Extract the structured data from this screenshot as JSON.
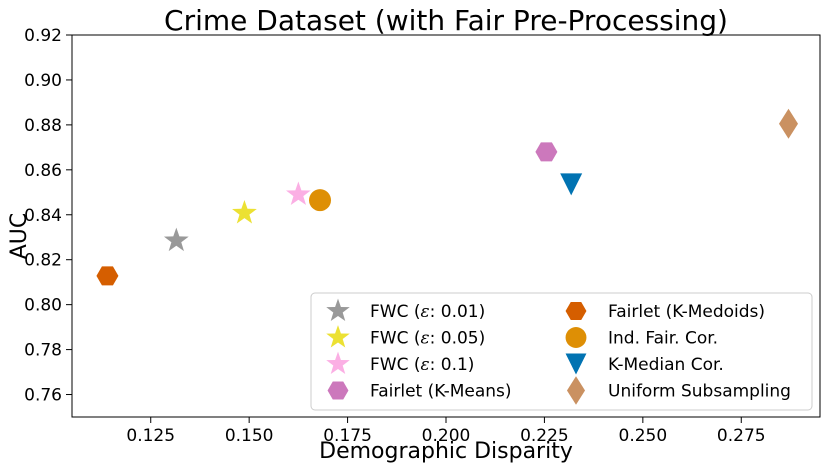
{
  "chart_data": {
    "type": "scatter",
    "title": "Crime Dataset (with Fair Pre-Processing)",
    "xlabel": "Demographic Disparity",
    "ylabel": "AUC",
    "xlim": [
      0.105,
      0.295
    ],
    "ylim": [
      0.75,
      0.92
    ],
    "xticks": [
      "0.125",
      "0.150",
      "0.175",
      "0.200",
      "0.225",
      "0.250",
      "0.275"
    ],
    "yticks": [
      "0.76",
      "0.78",
      "0.80",
      "0.82",
      "0.84",
      "0.86",
      "0.88",
      "0.90",
      "0.92"
    ],
    "grid": false,
    "legend_position": "lower-right",
    "series": [
      {
        "name": "FWC (ε: 0.01)",
        "label_prefix": "FWC (",
        "label_var": "ε",
        "label_suffix": ": 0.01)",
        "marker": "star",
        "color": "#999999",
        "x": 0.1315,
        "y": 0.8285
      },
      {
        "name": "FWC (ε: 0.05)",
        "label_prefix": "FWC (",
        "label_var": "ε",
        "label_suffix": ": 0.05)",
        "marker": "star",
        "color": "#ece133",
        "x": 0.1488,
        "y": 0.8408
      },
      {
        "name": "FWC (ε: 0.1)",
        "label_prefix": "FWC (",
        "label_var": "ε",
        "label_suffix": ": 0.1)",
        "marker": "star",
        "color": "#fbafe4",
        "x": 0.1625,
        "y": 0.849
      },
      {
        "name": "Fairlet (K-Means)",
        "marker": "hexagon",
        "color": "#cc78bc",
        "x": 0.2255,
        "y": 0.868
      },
      {
        "name": "Fairlet (K-Medoids)",
        "marker": "hexagon",
        "color": "#d55e00",
        "x": 0.114,
        "y": 0.8128
      },
      {
        "name": "Ind. Fair. Cor.",
        "marker": "circle",
        "color": "#de8f05",
        "x": 0.168,
        "y": 0.8465
      },
      {
        "name": "K-Median Cor.",
        "marker": "triangle-down",
        "color": "#0173b2",
        "x": 0.2318,
        "y": 0.8535
      },
      {
        "name": "Uniform Subsampling",
        "marker": "diamond",
        "color": "#ca9161",
        "x": 0.287,
        "y": 0.8805
      }
    ]
  }
}
